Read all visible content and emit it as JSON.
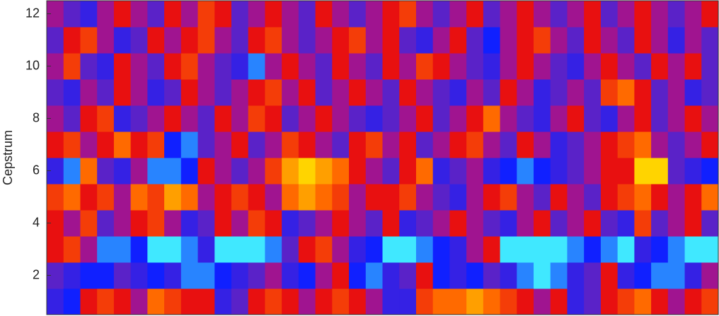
{
  "chart_data": {
    "type": "heatmap",
    "ylabel": "Cepstrum",
    "y": [
      1,
      2,
      3,
      4,
      5,
      6,
      7,
      8,
      9,
      10,
      11,
      12
    ],
    "ylim": [
      0.5,
      12.5
    ],
    "yticks": [
      2,
      4,
      6,
      8,
      10,
      12
    ],
    "zlim": [
      0,
      10
    ],
    "colorscale": [
      [
        0,
        "#40e8ff"
      ],
      [
        2,
        "#1020ff"
      ],
      [
        4,
        "#5a22c8"
      ],
      [
        5,
        "#a01490"
      ],
      [
        6,
        "#e81010"
      ],
      [
        8,
        "#ff6a00"
      ],
      [
        10,
        "#ffd400"
      ]
    ],
    "values": [
      [
        3,
        2,
        6,
        7,
        6,
        5,
        8,
        7,
        6,
        6,
        3,
        4,
        6,
        7,
        6,
        5,
        6,
        7,
        6,
        5,
        3,
        3,
        7,
        8,
        8,
        9,
        8,
        7,
        6,
        5,
        6,
        3,
        4,
        6,
        7,
        8,
        6,
        5,
        6,
        7
      ],
      [
        4,
        3,
        2,
        2,
        4,
        3,
        2,
        3,
        1,
        1,
        2,
        3,
        4,
        5,
        3,
        2,
        5,
        6,
        2,
        1,
        3,
        4,
        6,
        2,
        3,
        2,
        4,
        3,
        1,
        0,
        1,
        3,
        4,
        6,
        3,
        2,
        1,
        1,
        3,
        5
      ],
      [
        6,
        7,
        5,
        1,
        1,
        2,
        0,
        0,
        1,
        3,
        0,
        0,
        0,
        1,
        4,
        6,
        7,
        5,
        3,
        2,
        0,
        0,
        1,
        2,
        3,
        5,
        6,
        0,
        0,
        0,
        0,
        1,
        2,
        1,
        0,
        3,
        2,
        1,
        0,
        0
      ],
      [
        6,
        5,
        7,
        4,
        5,
        6,
        7,
        5,
        3,
        4,
        6,
        5,
        7,
        6,
        3,
        4,
        5,
        6,
        5,
        4,
        6,
        3,
        4,
        5,
        6,
        5,
        4,
        3,
        5,
        6,
        4,
        5,
        6,
        4,
        3,
        7,
        4,
        5,
        6,
        4
      ],
      [
        7,
        8,
        6,
        7,
        5,
        8,
        7,
        9,
        8,
        5,
        6,
        7,
        6,
        5,
        8,
        9,
        8,
        7,
        5,
        6,
        6,
        7,
        5,
        4,
        3,
        5,
        6,
        7,
        5,
        4,
        6,
        5,
        4,
        6,
        7,
        8,
        6,
        5,
        6,
        8
      ],
      [
        3,
        1,
        8,
        4,
        3,
        5,
        1,
        1,
        2,
        6,
        5,
        4,
        5,
        7,
        9,
        10,
        9,
        8,
        6,
        5,
        4,
        6,
        8,
        3,
        4,
        5,
        3,
        2,
        1,
        2,
        3,
        4,
        5,
        6,
        6,
        10,
        10,
        4,
        3,
        2
      ],
      [
        6,
        7,
        5,
        6,
        8,
        6,
        7,
        2,
        1,
        4,
        5,
        6,
        4,
        5,
        7,
        6,
        5,
        4,
        6,
        7,
        5,
        6,
        4,
        5,
        6,
        7,
        5,
        4,
        6,
        5,
        3,
        4,
        5,
        6,
        7,
        8,
        5,
        4,
        5,
        6
      ],
      [
        5,
        4,
        6,
        7,
        3,
        4,
        5,
        6,
        5,
        4,
        6,
        5,
        7,
        6,
        4,
        5,
        6,
        5,
        4,
        3,
        4,
        5,
        6,
        4,
        5,
        6,
        8,
        5,
        4,
        3,
        5,
        6,
        4,
        3,
        5,
        6,
        4,
        5,
        6,
        5
      ],
      [
        4,
        3,
        5,
        4,
        6,
        5,
        3,
        4,
        6,
        5,
        4,
        5,
        6,
        7,
        5,
        6,
        4,
        5,
        6,
        5,
        4,
        6,
        5,
        4,
        3,
        5,
        4,
        6,
        5,
        3,
        4,
        5,
        4,
        7,
        8,
        6,
        4,
        5,
        3,
        4
      ],
      [
        5,
        7,
        4,
        3,
        6,
        5,
        4,
        6,
        7,
        5,
        4,
        3,
        1,
        5,
        6,
        5,
        4,
        6,
        5,
        4,
        6,
        5,
        7,
        6,
        5,
        4,
        3,
        5,
        6,
        5,
        4,
        3,
        5,
        6,
        5,
        4,
        6,
        5,
        6,
        4
      ],
      [
        4,
        6,
        7,
        5,
        3,
        4,
        6,
        5,
        6,
        7,
        5,
        4,
        6,
        7,
        5,
        4,
        5,
        6,
        7,
        5,
        6,
        4,
        3,
        5,
        6,
        4,
        2,
        5,
        6,
        7,
        5,
        4,
        6,
        5,
        4,
        6,
        5,
        3,
        5,
        4
      ],
      [
        5,
        4,
        3,
        5,
        6,
        5,
        4,
        6,
        5,
        7,
        6,
        4,
        5,
        6,
        5,
        4,
        6,
        5,
        4,
        5,
        6,
        7,
        5,
        4,
        5,
        6,
        4,
        5,
        6,
        5,
        4,
        5,
        6,
        4,
        5,
        6,
        5,
        4,
        5,
        6
      ]
    ]
  }
}
